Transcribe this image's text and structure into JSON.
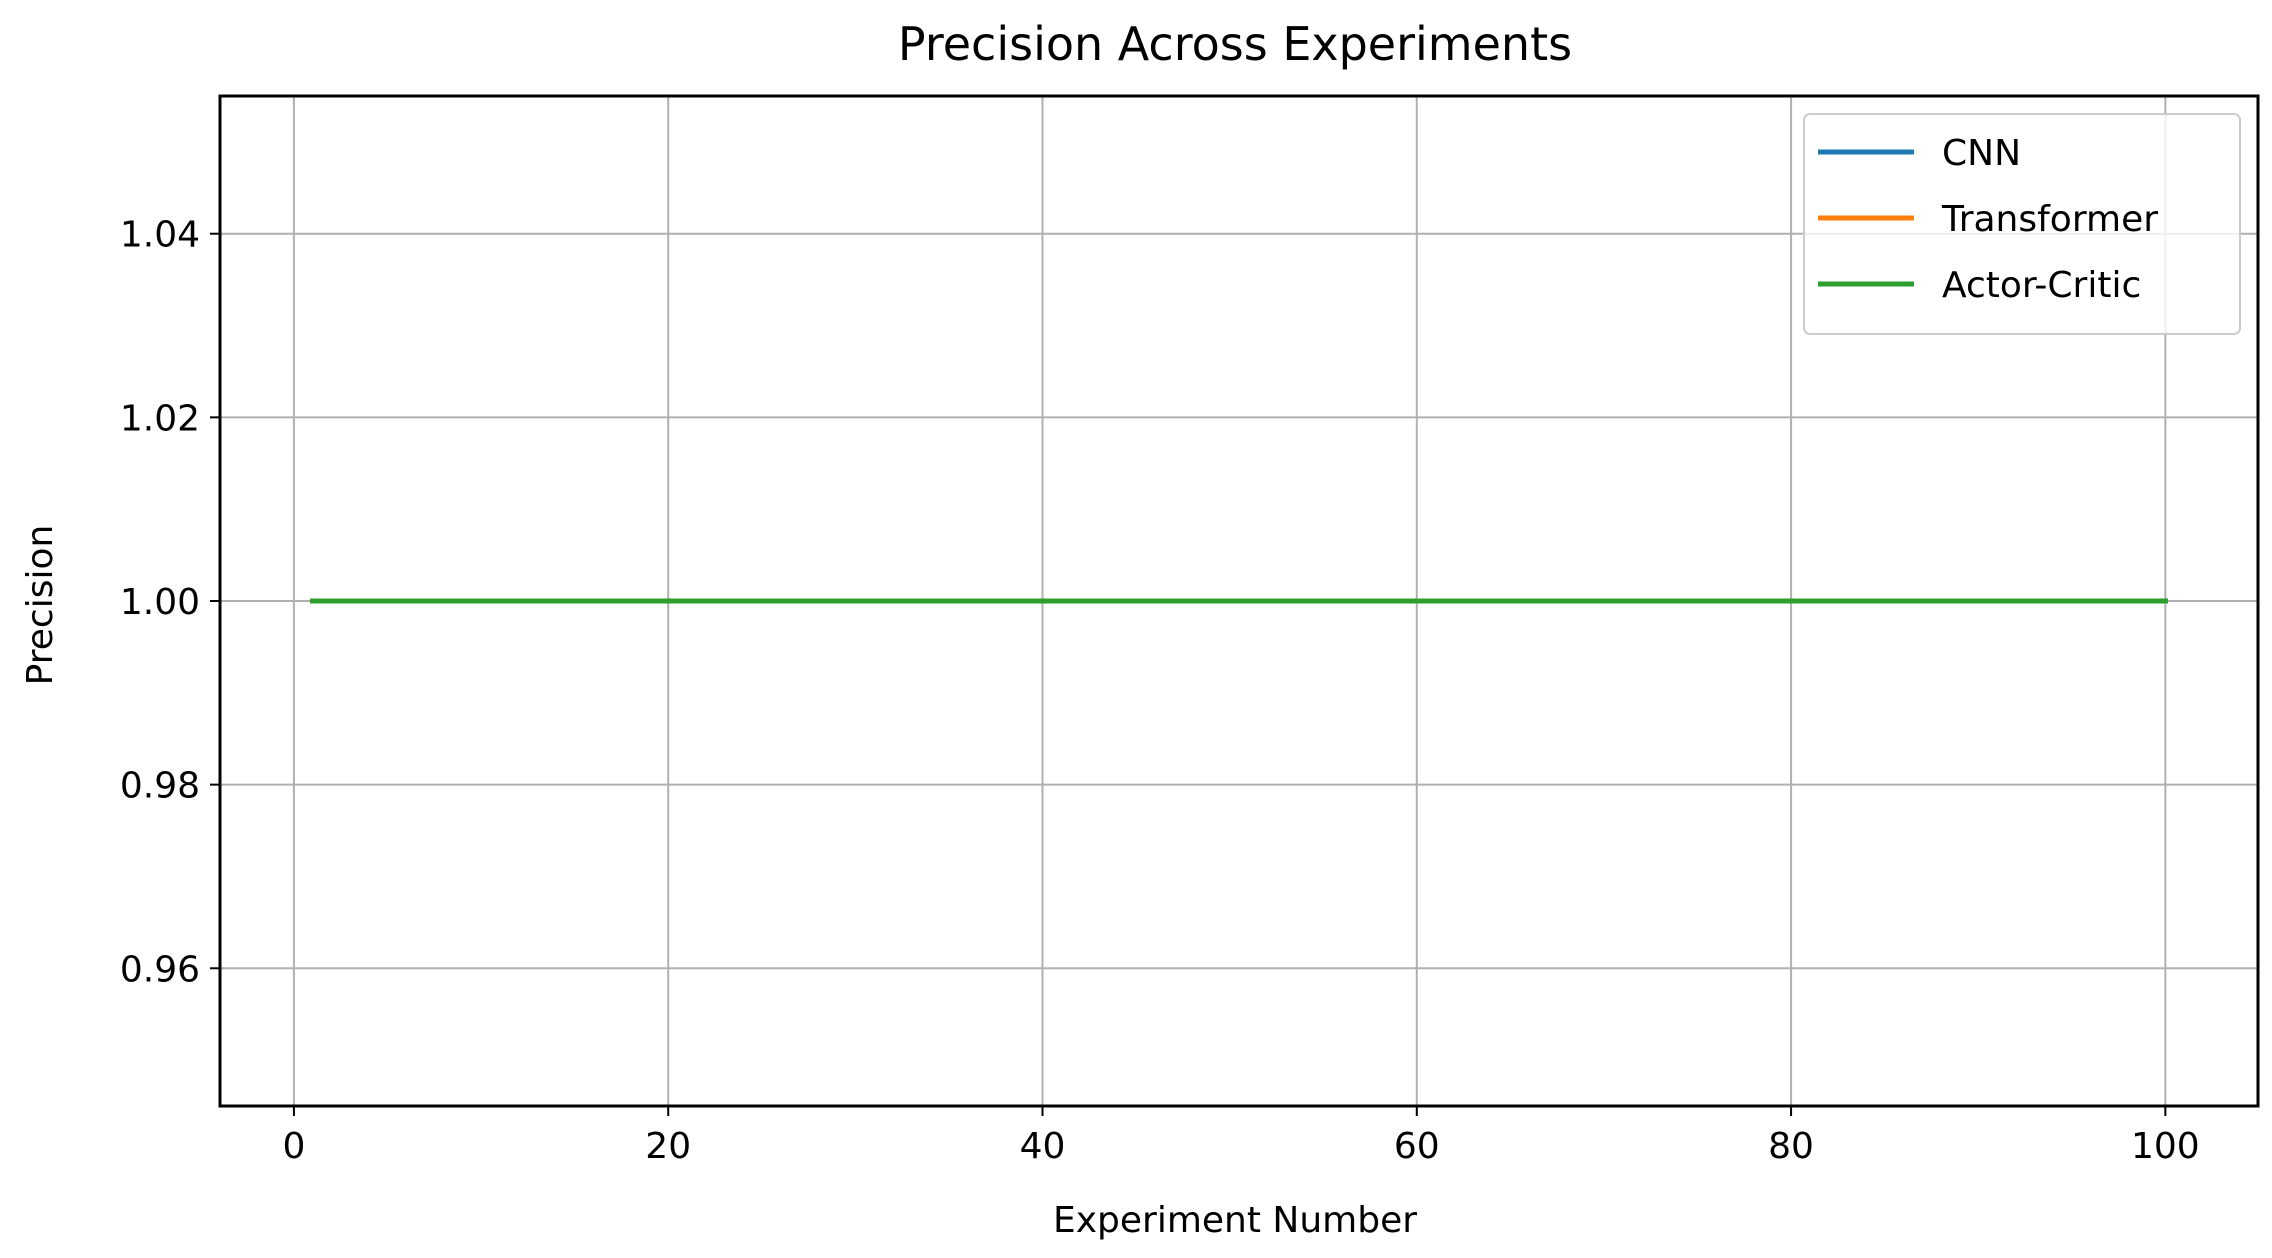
{
  "chart_data": {
    "type": "line",
    "title": "Precision Across Experiments",
    "xlabel": "Experiment Number",
    "ylabel": "Precision",
    "xlim": [
      -3.95,
      104.95
    ],
    "ylim": [
      0.945,
      1.055
    ],
    "xticks": [
      0,
      20,
      40,
      60,
      80,
      100
    ],
    "xtick_labels": [
      "0",
      "20",
      "40",
      "60",
      "80",
      "100"
    ],
    "yticks": [
      0.96,
      0.98,
      1.0,
      1.02,
      1.04
    ],
    "ytick_labels": [
      "0.96",
      "0.98",
      "1.00",
      "1.02",
      "1.04"
    ],
    "grid": true,
    "legend_position": "top-right",
    "x_range": [
      1,
      100
    ],
    "series": [
      {
        "name": "CNN",
        "color": "#1f77b4",
        "x": [
          1,
          100
        ],
        "y": [
          1.0,
          1.0
        ]
      },
      {
        "name": "Transformer",
        "color": "#ff7f0e",
        "x": [
          1,
          100
        ],
        "y": [
          1.0,
          1.0
        ]
      },
      {
        "name": "Actor-Critic",
        "color": "#2ca02c",
        "x": [
          1,
          100
        ],
        "y": [
          1.0,
          1.0
        ]
      }
    ]
  }
}
